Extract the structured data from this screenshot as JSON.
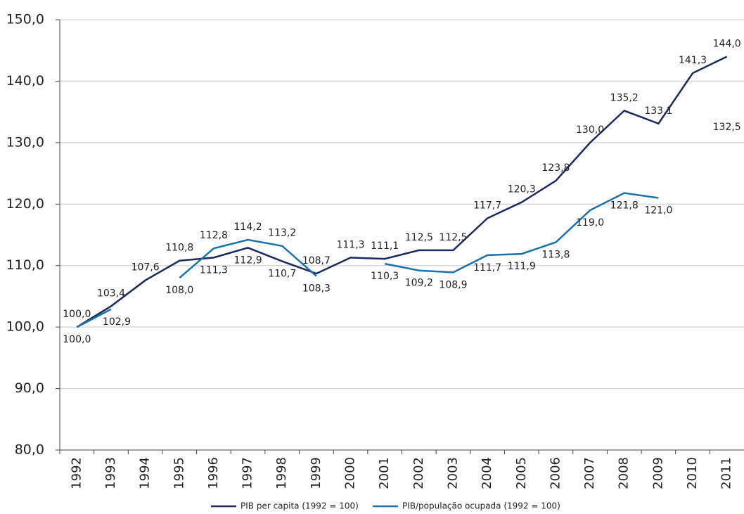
{
  "chart_data": {
    "type": "line",
    "categories": [
      "1992",
      "1993",
      "1994",
      "1995",
      "1996",
      "1997",
      "1998",
      "1999",
      "2000",
      "2001",
      "2002",
      "2003",
      "2004",
      "2005",
      "2006",
      "2007",
      "2008",
      "2009",
      "2010",
      "2011"
    ],
    "series": [
      {
        "name": "PIB per capita (1992 = 100)",
        "color": "#1b2a5c",
        "values": [
          100.0,
          103.4,
          107.6,
          110.8,
          111.3,
          112.9,
          110.7,
          108.7,
          111.3,
          111.1,
          112.5,
          112.5,
          117.7,
          120.3,
          123.8,
          130.0,
          135.2,
          133.1,
          141.3,
          144.0
        ],
        "value_labels": [
          "100,0",
          "103,4",
          "107,6",
          "110,8",
          "111,3",
          "112,9",
          "110,7",
          "108,7",
          "111,3",
          "111,1",
          "112,5",
          "112,5",
          "117,7",
          "120,3",
          "123,8",
          "130,0",
          "135,2",
          "133,1",
          "141,3",
          "144,0"
        ]
      },
      {
        "name": "PIB/população ocupada (1992 = 100)",
        "color": "#1a72ad",
        "values": [
          100.0,
          102.9,
          null,
          108.0,
          112.8,
          114.2,
          113.2,
          108.3,
          null,
          110.3,
          109.2,
          108.9,
          111.7,
          111.9,
          113.8,
          119.0,
          121.8,
          121.0,
          null,
          132.5
        ],
        "value_labels": [
          "100,0",
          "102,9",
          null,
          "108,0",
          "112,8",
          "114,2",
          "113,2",
          "108,3",
          null,
          "110,3",
          "109,2",
          "108,9",
          "111,7",
          "111,9",
          "113,8",
          "119,0",
          "121,8",
          "121,0",
          null,
          "132,5"
        ]
      }
    ],
    "ylim": [
      80,
      150
    ],
    "yticks": [
      {
        "value": 80,
        "label": "80,0"
      },
      {
        "value": 90,
        "label": "90,0"
      },
      {
        "value": 100,
        "label": "100,0"
      },
      {
        "value": 110,
        "label": "110,0"
      },
      {
        "value": 120,
        "label": "120,0"
      },
      {
        "value": 130,
        "label": "130,0"
      },
      {
        "value": 140,
        "label": "140,0"
      },
      {
        "value": 150,
        "label": "150,0"
      }
    ],
    "grid": true
  }
}
